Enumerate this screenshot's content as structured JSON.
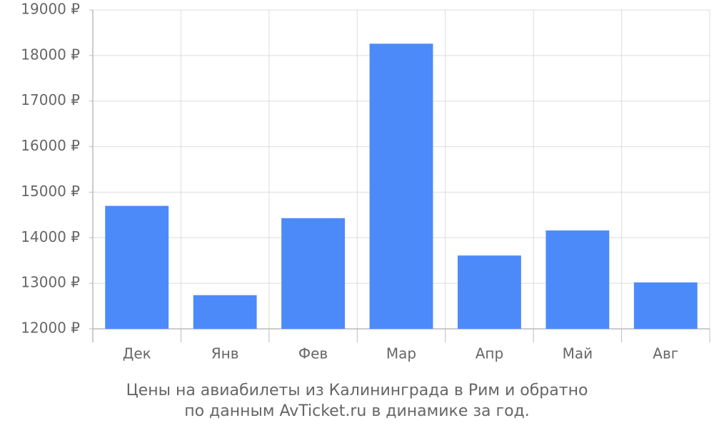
{
  "chart_data": {
    "type": "bar",
    "title": "Цены на авиабилеты из Калининграда в Рим и обратно",
    "subtitle": "по данным AvTicket.ru в динамике за год.",
    "categories": [
      "Дек",
      "Янв",
      "Фев",
      "Мар",
      "Апр",
      "Май",
      "Авг"
    ],
    "values": [
      14700,
      12740,
      14430,
      18260,
      13610,
      14160,
      13020
    ],
    "color": "#4d8af9",
    "ylim": [
      12000,
      19000
    ],
    "yticks": [
      {
        "value": 12000,
        "label": "12000 ₽"
      },
      {
        "value": 13000,
        "label": "13000 ₽"
      },
      {
        "value": 14000,
        "label": "14000 ₽"
      },
      {
        "value": 15000,
        "label": "15000 ₽"
      },
      {
        "value": 16000,
        "label": "16000 ₽"
      },
      {
        "value": 17000,
        "label": "17000 ₽"
      },
      {
        "value": 18000,
        "label": "18000 ₽"
      },
      {
        "value": 19000,
        "label": "19000 ₽"
      }
    ],
    "grid": true
  }
}
